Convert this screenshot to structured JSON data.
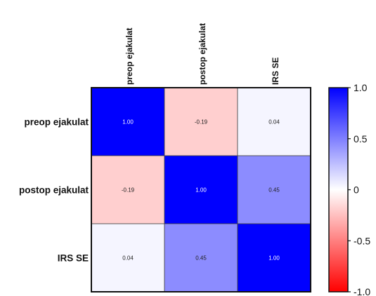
{
  "chart_data": {
    "type": "heatmap",
    "rows": [
      "preop ejakulat",
      "postop ejakulat",
      "IRS SE"
    ],
    "columns": [
      "preop ejakulat",
      "postop ejakulat",
      "IRS SE"
    ],
    "values": [
      [
        1.0,
        -0.19,
        0.04
      ],
      [
        -0.19,
        1.0,
        0.45
      ],
      [
        0.04,
        0.45,
        1.0
      ]
    ],
    "cell_labels": [
      [
        "1.00",
        "-0.19",
        "0.04"
      ],
      [
        "-0.19",
        "1.00",
        "0.45"
      ],
      [
        "0.04",
        "0.45",
        "1.00"
      ]
    ],
    "colorbar": {
      "range": [
        -1.0,
        1.0
      ],
      "ticks": [
        1.0,
        0.5,
        0,
        -0.5,
        -1.0
      ],
      "tick_labels": [
        "1.0",
        "0.5",
        "0",
        "-0.5",
        "-1.0"
      ],
      "low_color": "#ff0000",
      "mid_color": "#ffffff",
      "high_color": "#0000ff"
    },
    "title": "",
    "xlabel": "",
    "ylabel": ""
  }
}
